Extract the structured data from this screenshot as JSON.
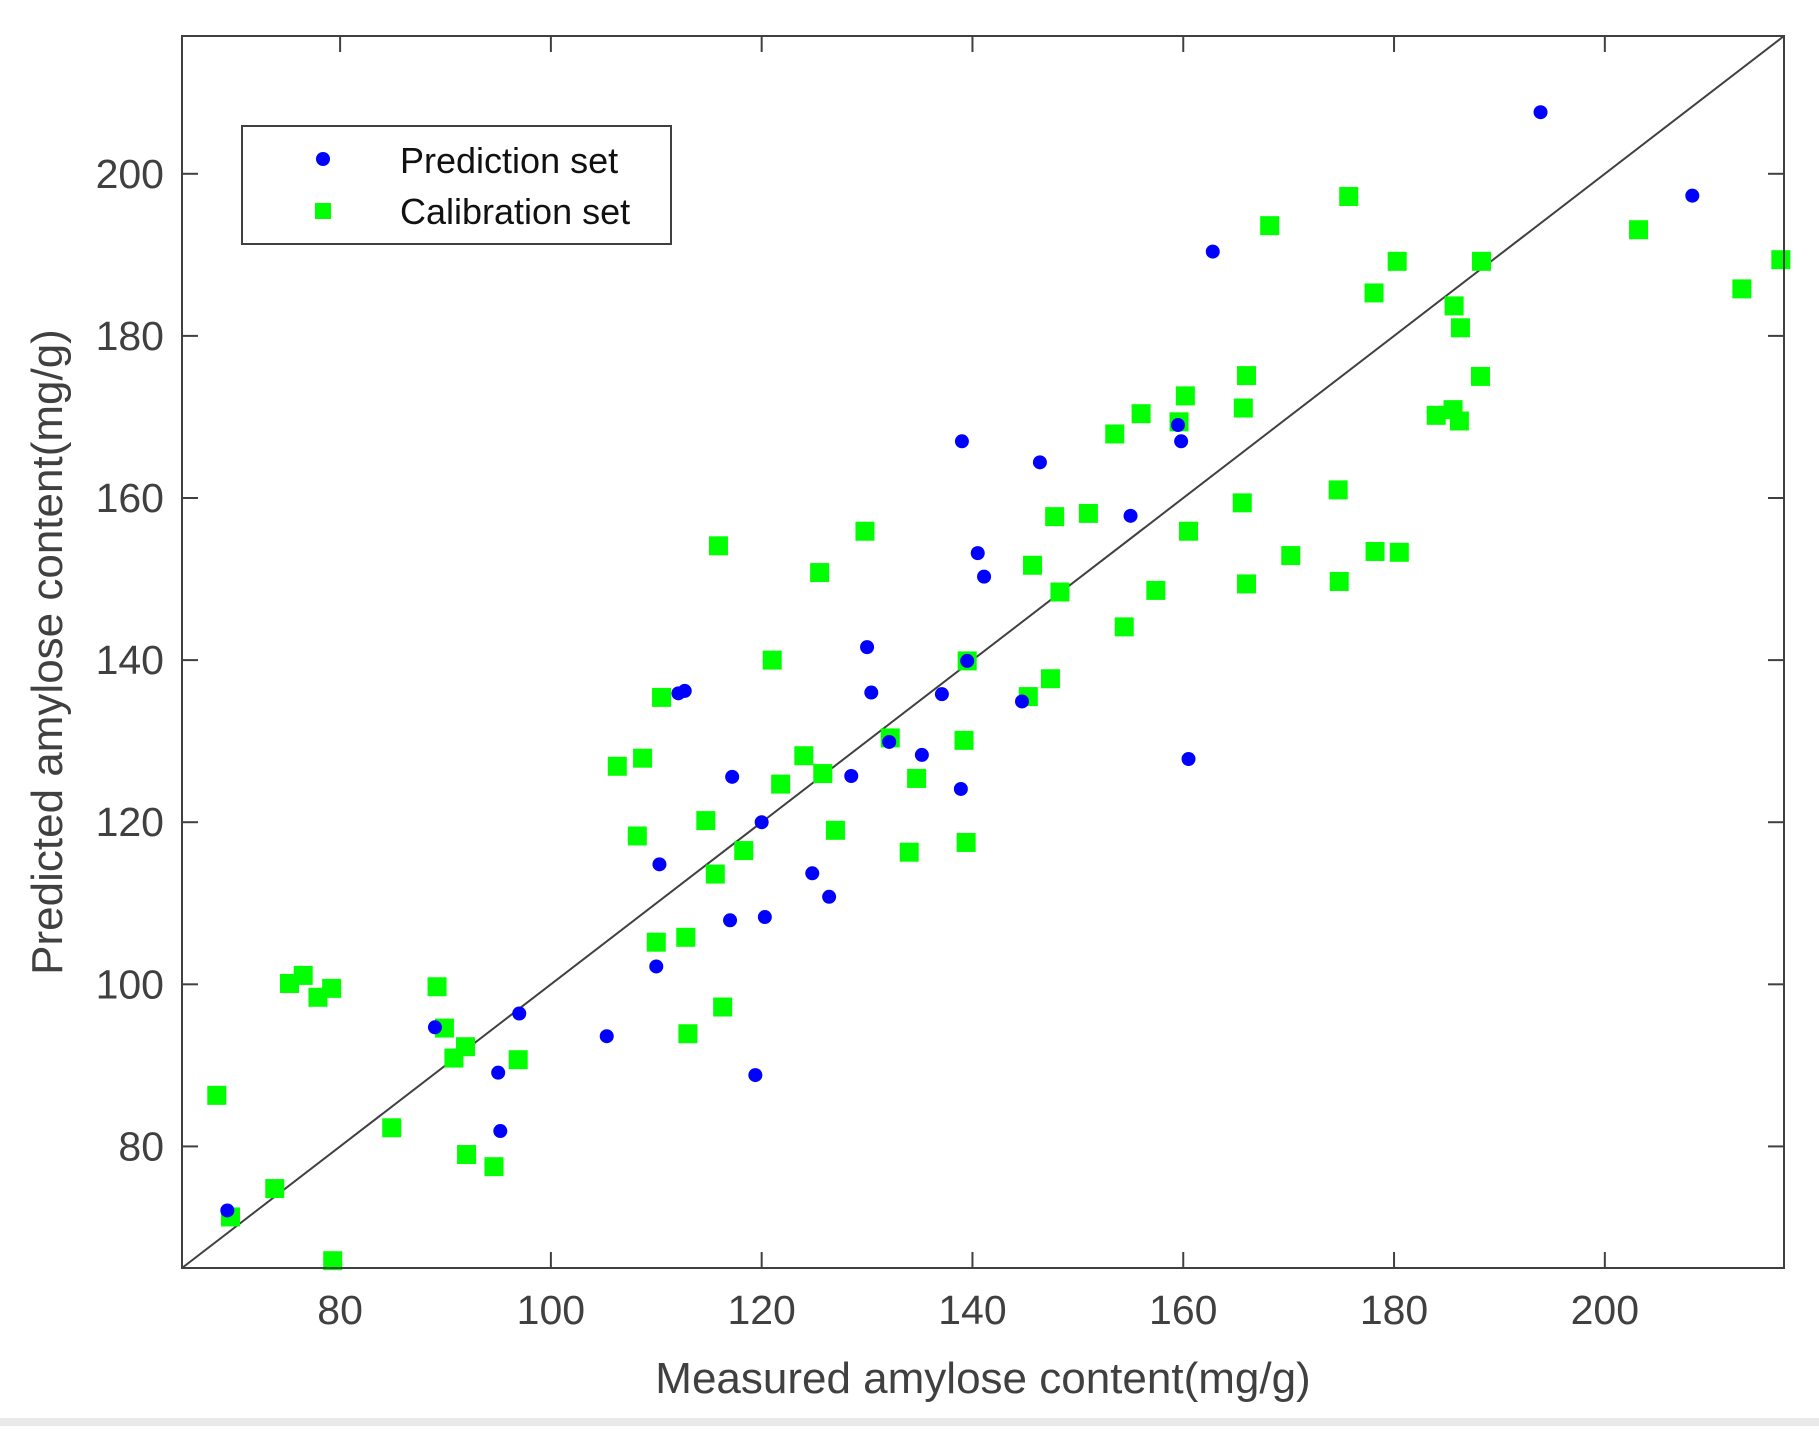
{
  "chart_data": {
    "type": "scatter",
    "title": "",
    "xlabel": "Measured amylose content(mg/g)",
    "ylabel": "Predicted amylose content(mg/g)",
    "xlim": [
      65,
      217
    ],
    "ylim": [
      65,
      217
    ],
    "xticks": [
      80,
      100,
      120,
      140,
      160,
      180,
      200
    ],
    "yticks": [
      80,
      100,
      120,
      140,
      160,
      180,
      200
    ],
    "reference_line": "y = x",
    "grid": false,
    "legend_position": "top-left",
    "colors": {
      "prediction": "#0000ff",
      "calibration": "#00ff00",
      "line": "#404040",
      "axis": "#404040"
    },
    "series": [
      {
        "name": "Prediction set",
        "marker": "circle",
        "points": [
          [
            69.3,
            72.1
          ],
          [
            89.0,
            94.7
          ],
          [
            95.0,
            89.1
          ],
          [
            95.2,
            81.9
          ],
          [
            97.0,
            96.4
          ],
          [
            105.3,
            93.6
          ],
          [
            110.0,
            102.2
          ],
          [
            110.3,
            114.8
          ],
          [
            112.1,
            135.9
          ],
          [
            112.7,
            136.2
          ],
          [
            117.0,
            107.9
          ],
          [
            117.2,
            125.6
          ],
          [
            119.4,
            88.8
          ],
          [
            120.0,
            120.0
          ],
          [
            120.3,
            108.3
          ],
          [
            124.8,
            113.7
          ],
          [
            126.4,
            110.8
          ],
          [
            128.5,
            125.7
          ],
          [
            130.0,
            141.6
          ],
          [
            130.4,
            136.0
          ],
          [
            132.1,
            129.9
          ],
          [
            135.2,
            128.3
          ],
          [
            137.1,
            135.8
          ],
          [
            138.9,
            124.1
          ],
          [
            139.0,
            167.0
          ],
          [
            139.5,
            139.9
          ],
          [
            140.5,
            153.2
          ],
          [
            141.1,
            150.3
          ],
          [
            144.7,
            134.9
          ],
          [
            146.4,
            164.4
          ],
          [
            155.0,
            157.8
          ],
          [
            159.5,
            169.0
          ],
          [
            159.8,
            167.0
          ],
          [
            160.5,
            127.8
          ],
          [
            162.8,
            190.4
          ],
          [
            193.9,
            207.6
          ],
          [
            208.3,
            197.3
          ]
        ]
      },
      {
        "name": "Calibration set",
        "marker": "square",
        "points": [
          [
            68.3,
            86.3
          ],
          [
            69.6,
            71.3
          ],
          [
            73.8,
            74.8
          ],
          [
            75.2,
            100.1
          ],
          [
            76.5,
            101.1
          ],
          [
            77.9,
            98.4
          ],
          [
            79.2,
            99.5
          ],
          [
            79.3,
            65.9
          ],
          [
            84.9,
            82.3
          ],
          [
            89.2,
            99.7
          ],
          [
            89.9,
            94.6
          ],
          [
            90.8,
            90.9
          ],
          [
            91.9,
            92.3
          ],
          [
            92.0,
            79.0
          ],
          [
            94.6,
            77.5
          ],
          [
            96.9,
            90.7
          ],
          [
            106.3,
            126.9
          ],
          [
            108.2,
            118.3
          ],
          [
            108.7,
            127.9
          ],
          [
            110.0,
            105.2
          ],
          [
            110.5,
            135.4
          ],
          [
            112.8,
            105.8
          ],
          [
            113.0,
            93.9
          ],
          [
            114.7,
            120.2
          ],
          [
            115.6,
            113.6
          ],
          [
            115.9,
            154.1
          ],
          [
            116.3,
            97.2
          ],
          [
            118.3,
            116.5
          ],
          [
            121.0,
            140.0
          ],
          [
            121.8,
            124.7
          ],
          [
            124.0,
            128.2
          ],
          [
            125.5,
            150.8
          ],
          [
            125.8,
            126.0
          ],
          [
            127.0,
            119.0
          ],
          [
            129.8,
            155.9
          ],
          [
            132.2,
            130.4
          ],
          [
            134.0,
            116.3
          ],
          [
            134.7,
            125.4
          ],
          [
            139.2,
            130.1
          ],
          [
            139.4,
            117.5
          ],
          [
            139.5,
            139.9
          ],
          [
            145.3,
            135.5
          ],
          [
            145.7,
            151.7
          ],
          [
            147.4,
            137.7
          ],
          [
            147.8,
            157.7
          ],
          [
            148.3,
            148.4
          ],
          [
            151.0,
            158.1
          ],
          [
            153.5,
            167.9
          ],
          [
            154.4,
            144.1
          ],
          [
            156.0,
            170.4
          ],
          [
            157.4,
            148.6
          ],
          [
            159.6,
            169.4
          ],
          [
            160.2,
            172.6
          ],
          [
            160.5,
            155.9
          ],
          [
            165.6,
            159.4
          ],
          [
            165.7,
            171.1
          ],
          [
            166.0,
            175.1
          ],
          [
            166.0,
            149.4
          ],
          [
            168.2,
            193.6
          ],
          [
            170.2,
            152.9
          ],
          [
            174.7,
            161.0
          ],
          [
            174.8,
            149.7
          ],
          [
            175.7,
            197.2
          ],
          [
            178.1,
            185.3
          ],
          [
            178.2,
            153.4
          ],
          [
            180.3,
            189.2
          ],
          [
            180.5,
            153.3
          ],
          [
            184.0,
            170.2
          ],
          [
            185.6,
            170.9
          ],
          [
            185.7,
            183.7
          ],
          [
            186.2,
            169.5
          ],
          [
            186.3,
            181.0
          ],
          [
            188.2,
            175.0
          ],
          [
            188.3,
            189.2
          ],
          [
            203.2,
            193.1
          ],
          [
            213.0,
            185.8
          ],
          [
            216.7,
            189.4
          ]
        ]
      }
    ]
  }
}
